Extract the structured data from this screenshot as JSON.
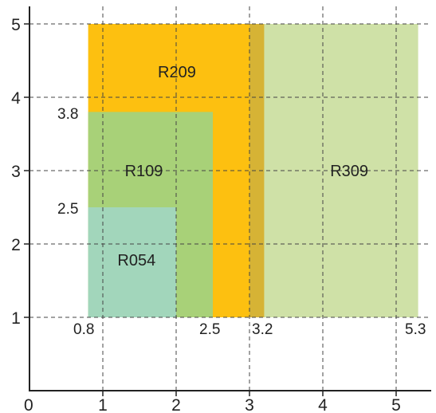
{
  "axes": {
    "x_ticks": [
      0,
      1,
      2,
      3,
      4,
      5
    ],
    "y_ticks": [
      1,
      2,
      3,
      4,
      5
    ],
    "x_range": [
      0,
      5.5
    ],
    "y_range": [
      0,
      5.25
    ],
    "grid": true
  },
  "regions": [
    {
      "id": "R209",
      "label": "R209",
      "x0": 0.8,
      "x1": 3.2,
      "y0": 1,
      "y1": 5,
      "color": "#FDC010",
      "label_at": [
        1.75,
        4.35
      ]
    },
    {
      "id": "R309",
      "label": "R309",
      "x0": 3.0,
      "x1": 5.3,
      "y0": 1,
      "y1": 5,
      "color": "#CFE1A7",
      "label_at": [
        4.1,
        3.0
      ]
    },
    {
      "id": "R109",
      "label": "R109",
      "x0": 0.8,
      "x1": 2.5,
      "y0": 1,
      "y1": 3.8,
      "color": "#A8D178",
      "label_at": [
        1.3,
        3.0
      ]
    },
    {
      "id": "R054",
      "label": "R054",
      "x0": 0.8,
      "x1": 2.0,
      "y0": 1,
      "y1": 2.5,
      "color": "#A2D6BB",
      "label_at": [
        1.2,
        1.78
      ]
    }
  ],
  "overlap": {
    "x0": 3.0,
    "x1": 3.2,
    "y0": 1,
    "y1": 5,
    "color": "#D6B335"
  },
  "annotations": {
    "y_3_8": "3.8",
    "y_2_5": "2.5",
    "x_0_8": "0.8",
    "x_2_5": "2.5",
    "x_3_2": "3.2",
    "x_5_3": "5.3"
  }
}
